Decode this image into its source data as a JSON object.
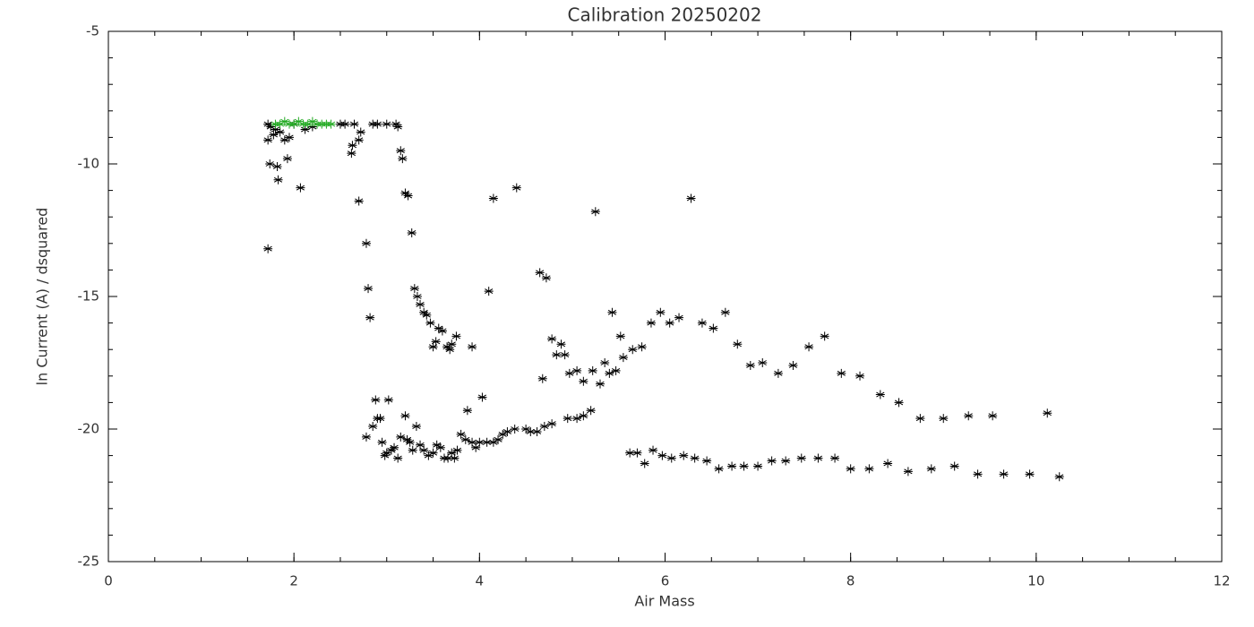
{
  "chart_data": {
    "type": "scatter",
    "title": "Calibration 20250202",
    "x_label": "Air Mass",
    "y_label": "ln Current (A) / dsquared",
    "xlim": [
      0,
      12
    ],
    "ylim": [
      -25,
      -5
    ],
    "xticks": [
      0,
      2,
      4,
      6,
      8,
      10,
      12
    ],
    "yticks": [
      -25,
      -20,
      -15,
      -10,
      -5
    ],
    "xminorticks": [
      0,
      0.5,
      1,
      1.5,
      2,
      2.5,
      3,
      3.5,
      4,
      4.5,
      5,
      5.5,
      6,
      6.5,
      7,
      7.5,
      8,
      8.5,
      9,
      9.5,
      10,
      10.5,
      11,
      11.5,
      12
    ],
    "yminorticks": [
      -25,
      -24,
      -23,
      -22,
      -21,
      -20,
      -19,
      -18,
      -17,
      -16,
      -15,
      -14,
      -13,
      -12,
      -11,
      -10,
      -9,
      -8,
      -7,
      -6,
      -5
    ],
    "grid": false,
    "series": [
      {
        "color": "#000000",
        "x": [
          1.72,
          1.75,
          1.8,
          1.72,
          1.78,
          1.85,
          1.9,
          1.95,
          2.0,
          2.12,
          2.2,
          2.5,
          2.55,
          2.65,
          2.63,
          2.62,
          2.7,
          2.72,
          2.85,
          2.9,
          3.0,
          3.1,
          3.12,
          3.15,
          3.17,
          3.2,
          3.23,
          3.27,
          1.74,
          1.82,
          1.83,
          1.93,
          2.07,
          1.72,
          2.7,
          2.78,
          2.8,
          2.82,
          3.3,
          3.33,
          3.36,
          3.4,
          3.43,
          3.47,
          3.5,
          3.53,
          3.56,
          3.6,
          3.65,
          3.68,
          3.7,
          3.75,
          3.92,
          2.78,
          2.85,
          2.88,
          2.9,
          2.93,
          2.95,
          2.98,
          3.0,
          3.02,
          3.05,
          3.08,
          3.12,
          3.15,
          3.2,
          3.22,
          3.25,
          3.28,
          3.32,
          3.36,
          3.4,
          3.45,
          3.5,
          3.54,
          3.58,
          3.62,
          3.66,
          3.7,
          3.73,
          3.76,
          3.8,
          3.85,
          3.87,
          3.92,
          3.96,
          4.0,
          4.03,
          4.08,
          4.15,
          4.2,
          4.25,
          4.3,
          4.38,
          4.5,
          4.55,
          4.62,
          4.7,
          4.78,
          4.95,
          5.05,
          5.12,
          5.2,
          4.1,
          4.15,
          4.4,
          4.65,
          4.72,
          4.68,
          4.78,
          4.83,
          4.88,
          4.92,
          4.97,
          5.05,
          5.12,
          5.22,
          5.25,
          5.3,
          5.35,
          5.4,
          5.43,
          5.47,
          5.52,
          5.55,
          5.65,
          5.75,
          5.85,
          5.95,
          6.05,
          6.15,
          6.28,
          6.4,
          6.52,
          6.65,
          6.78,
          6.92,
          7.05,
          7.22,
          7.38,
          7.55,
          7.72,
          7.9,
          8.1,
          8.32,
          8.52,
          8.75,
          9.0,
          9.27,
          9.53,
          10.12,
          5.62,
          5.7,
          5.78,
          5.87,
          5.97,
          6.07,
          6.2,
          6.32,
          6.45,
          6.58,
          6.72,
          6.85,
          7.0,
          7.15,
          7.3,
          7.47,
          7.65,
          7.83,
          8.0,
          8.2,
          8.4,
          8.62,
          8.87,
          9.12,
          9.37,
          9.65,
          9.93,
          10.25
        ],
        "values": [
          -8.5,
          -8.6,
          -8.7,
          -9.1,
          -8.9,
          -8.8,
          -9.1,
          -9.0,
          -8.5,
          -8.7,
          -8.6,
          -8.5,
          -8.5,
          -8.5,
          -9.3,
          -9.6,
          -9.1,
          -8.8,
          -8.5,
          -8.5,
          -8.5,
          -8.5,
          -8.6,
          -9.5,
          -9.8,
          -11.1,
          -11.2,
          -12.6,
          -10.0,
          -10.1,
          -10.6,
          -9.8,
          -10.9,
          -13.2,
          -11.4,
          -13.0,
          -14.7,
          -15.8,
          -14.7,
          -15.0,
          -15.3,
          -15.6,
          -15.7,
          -16.0,
          -16.9,
          -16.7,
          -16.2,
          -16.3,
          -16.9,
          -17.0,
          -16.8,
          -16.5,
          -16.9,
          -20.3,
          -19.9,
          -18.9,
          -19.6,
          -19.6,
          -20.5,
          -21.0,
          -20.9,
          -18.9,
          -20.8,
          -20.7,
          -21.1,
          -20.3,
          -19.5,
          -20.4,
          -20.5,
          -20.8,
          -19.9,
          -20.6,
          -20.8,
          -21.0,
          -20.9,
          -20.6,
          -20.7,
          -21.1,
          -21.1,
          -20.9,
          -21.1,
          -20.8,
          -20.2,
          -20.4,
          -19.3,
          -20.5,
          -20.7,
          -20.5,
          -18.8,
          -20.5,
          -20.5,
          -20.4,
          -20.2,
          -20.1,
          -20.0,
          -20.0,
          -20.1,
          -20.1,
          -19.9,
          -19.8,
          -19.6,
          -19.6,
          -19.5,
          -19.3,
          -14.8,
          -11.3,
          -10.9,
          -14.1,
          -14.3,
          -18.1,
          -16.6,
          -17.2,
          -16.8,
          -17.2,
          -17.9,
          -17.8,
          -18.2,
          -17.8,
          -11.8,
          -18.3,
          -17.5,
          -17.9,
          -15.6,
          -17.8,
          -16.5,
          -17.3,
          -17.0,
          -16.9,
          -16.0,
          -15.6,
          -16.0,
          -15.8,
          -11.3,
          -16.0,
          -16.2,
          -15.6,
          -16.8,
          -17.6,
          -17.5,
          -17.9,
          -17.6,
          -16.9,
          -16.5,
          -17.9,
          -18.0,
          -18.7,
          -19.0,
          -19.6,
          -19.6,
          -19.5,
          -19.5,
          -19.4,
          -20.9,
          -20.9,
          -21.3,
          -20.8,
          -21.0,
          -21.1,
          -21.0,
          -21.1,
          -21.2,
          -21.5,
          -21.4,
          -21.4,
          -21.4,
          -21.2,
          -21.2,
          -21.1,
          -21.1,
          -21.1,
          -21.5,
          -21.5,
          -21.3,
          -21.6,
          -21.5,
          -21.4,
          -21.7,
          -21.7,
          -21.7,
          -21.8
        ]
      },
      {
        "color": "#22aa22",
        "x": [
          1.8,
          1.85,
          1.9,
          1.95,
          2.0,
          2.05,
          2.1,
          2.15,
          2.2,
          2.25,
          2.3,
          2.35,
          2.4
        ],
        "values": [
          -8.5,
          -8.5,
          -8.4,
          -8.5,
          -8.5,
          -8.4,
          -8.5,
          -8.5,
          -8.4,
          -8.5,
          -8.5,
          -8.5,
          -8.5
        ]
      }
    ]
  }
}
